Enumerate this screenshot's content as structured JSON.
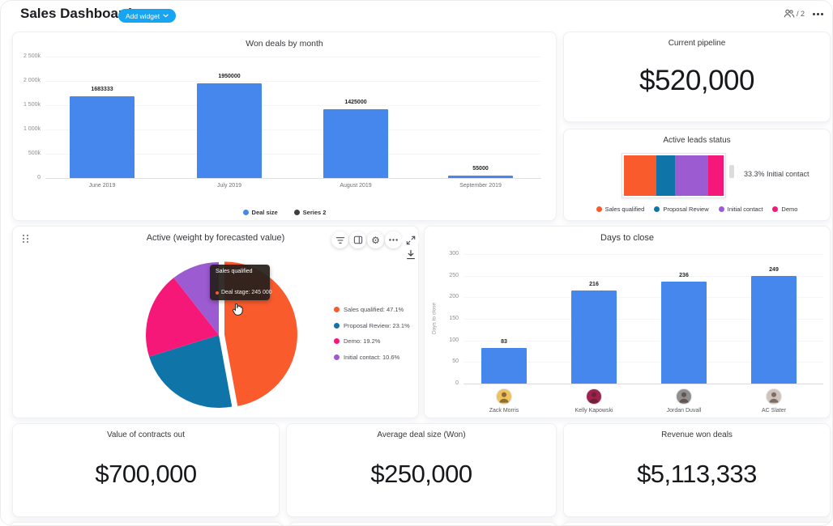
{
  "header": {
    "title": "Sales Dashboard",
    "add_widget_label": "Add widget",
    "members_label": "/ 2"
  },
  "colors": {
    "accent_blue": "#17a4f1",
    "bar_blue": "#4687ee",
    "orange": "#fa5b2d",
    "teal_blue": "#0f75a8",
    "pink": "#f61879",
    "purple": "#9c5bd1",
    "dark_series": "#3f3f3f"
  },
  "widgets": {
    "won_deals": {
      "title": "Won deals by month",
      "chart_data": {
        "type": "bar",
        "categories": [
          "June 2019",
          "July 2019",
          "August 2019",
          "September 2019"
        ],
        "series": [
          {
            "name": "Deal size",
            "values": [
              1683333,
              1950000,
              1425000,
              55000
            ]
          }
        ],
        "legend": [
          "Deal size",
          "Series 2"
        ],
        "ylim": [
          0,
          2500000
        ],
        "yticks": [
          {
            "value": 0,
            "label": "0"
          },
          {
            "value": 500000,
            "label": "500k"
          },
          {
            "value": 1000000,
            "label": "1 000k"
          },
          {
            "value": 1500000,
            "label": "1 500k"
          },
          {
            "value": 2000000,
            "label": "2 000k"
          },
          {
            "value": 2500000,
            "label": "2 500k"
          }
        ]
      }
    },
    "current_pipeline": {
      "title": "Current pipeline",
      "value": "$520,000"
    },
    "leads_status": {
      "title": "Active leads status",
      "annotation": "33.3% Initial contact",
      "chart_data": {
        "type": "stacked-bar",
        "segments": [
          {
            "label": "Sales qualified",
            "pct": 32.9,
            "color": "#fa5b2d"
          },
          {
            "label": "Proposal Review",
            "pct": 18.6,
            "color": "#0f75a8"
          },
          {
            "label": "Initial contact",
            "pct": 33.3,
            "color": "#9c5bd1"
          },
          {
            "label": "Demo",
            "pct": 15.2,
            "color": "#f61879"
          }
        ]
      }
    },
    "active_pie": {
      "title": "Active (weight by forecasted value)",
      "tooltip": {
        "title": "Sales qualified",
        "line": "Deal stage: 245 000"
      },
      "chart_data": {
        "type": "pie",
        "slices": [
          {
            "label": "Sales qualified",
            "pct": 47.1,
            "color": "#fa5b2d",
            "exploded": true
          },
          {
            "label": "Proposal Review",
            "pct": 23.1,
            "color": "#0f75a8",
            "exploded": false
          },
          {
            "label": "Demo",
            "pct": 19.2,
            "color": "#f61879",
            "exploded": false
          },
          {
            "label": "Initial contact",
            "pct": 10.6,
            "color": "#9c5bd1",
            "exploded": false
          }
        ],
        "legend": [
          "Sales qualified: 47.1%",
          "Proposal Review: 23.1%",
          "Demo: 19.2%",
          "Initial contact: 10.6%"
        ]
      }
    },
    "days_to_close": {
      "title": "Days to close",
      "chart_data": {
        "type": "bar",
        "categories": [
          "Zack Morris",
          "Kelly Kapowski",
          "Jordan Duvall",
          "AC Slater"
        ],
        "values": [
          83,
          216,
          236,
          249
        ],
        "ylabel": "Days to close",
        "ylim": [
          0,
          300
        ],
        "yticks": [
          {
            "value": 0,
            "label": "0"
          },
          {
            "value": 50,
            "label": "50"
          },
          {
            "value": 100,
            "label": "100"
          },
          {
            "value": 150,
            "label": "150"
          },
          {
            "value": 200,
            "label": "200"
          },
          {
            "value": 250,
            "label": "250"
          },
          {
            "value": 300,
            "label": "300"
          }
        ],
        "avatar_colors": [
          "#edc25f",
          "#9e2150",
          "#8f8f8f",
          "#cfc4bd"
        ]
      }
    },
    "contracts_out": {
      "title": "Value of contracts out",
      "value": "$700,000"
    },
    "avg_deal_size": {
      "title": "Average deal size (Won)",
      "value": "$250,000"
    },
    "revenue_won": {
      "title": "Revenue won deals",
      "value": "$5,113,333"
    }
  }
}
